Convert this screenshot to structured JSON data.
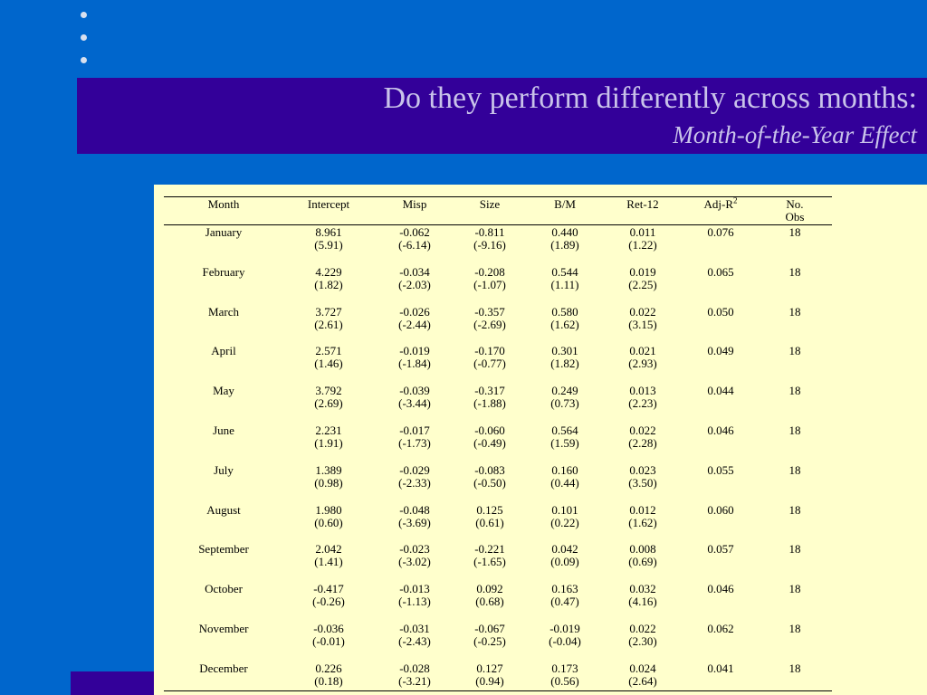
{
  "slide": {
    "title": "Do they perform differently across months:",
    "subtitle": "Month-of-the-Year Effect",
    "bullet_count": 3
  },
  "table": {
    "headers": {
      "month": "Month",
      "intercept": "Intercept",
      "misp": "Misp",
      "size": "Size",
      "bm": "B/M",
      "ret12": "Ret-12",
      "adjr": "Adj-R",
      "adjr_sup": "2",
      "obs_line1": "No.",
      "obs_line2": "Obs"
    },
    "rows": [
      {
        "month": "January",
        "intercept": "8.961",
        "intercept_t": "(5.91)",
        "misp": "-0.062",
        "misp_t": "(-6.14)",
        "size": "-0.811",
        "size_t": "(-9.16)",
        "bm": "0.440",
        "bm_t": "(1.89)",
        "ret12": "0.011",
        "ret12_t": "(1.22)",
        "adjr": "0.076",
        "obs": "18"
      },
      {
        "month": "February",
        "intercept": "4.229",
        "intercept_t": "(1.82)",
        "misp": "-0.034",
        "misp_t": "(-2.03)",
        "size": "-0.208",
        "size_t": "(-1.07)",
        "bm": "0.544",
        "bm_t": "(1.11)",
        "ret12": "0.019",
        "ret12_t": "(2.25)",
        "adjr": "0.065",
        "obs": "18"
      },
      {
        "month": "March",
        "intercept": "3.727",
        "intercept_t": "(2.61)",
        "misp": "-0.026",
        "misp_t": "(-2.44)",
        "size": "-0.357",
        "size_t": "(-2.69)",
        "bm": "0.580",
        "bm_t": "(1.62)",
        "ret12": "0.022",
        "ret12_t": "(3.15)",
        "adjr": "0.050",
        "obs": "18"
      },
      {
        "month": "April",
        "intercept": "2.571",
        "intercept_t": "(1.46)",
        "misp": "-0.019",
        "misp_t": "(-1.84)",
        "size": "-0.170",
        "size_t": "(-0.77)",
        "bm": "0.301",
        "bm_t": "(1.82)",
        "ret12": "0.021",
        "ret12_t": "(2.93)",
        "adjr": "0.049",
        "obs": "18"
      },
      {
        "month": "May",
        "intercept": "3.792",
        "intercept_t": "(2.69)",
        "misp": "-0.039",
        "misp_t": "(-3.44)",
        "size": "-0.317",
        "size_t": "(-1.88)",
        "bm": "0.249",
        "bm_t": "(0.73)",
        "ret12": "0.013",
        "ret12_t": "(2.23)",
        "adjr": "0.044",
        "obs": "18"
      },
      {
        "month": "June",
        "intercept": "2.231",
        "intercept_t": "(1.91)",
        "misp": "-0.017",
        "misp_t": "(-1.73)",
        "size": "-0.060",
        "size_t": "(-0.49)",
        "bm": "0.564",
        "bm_t": "(1.59)",
        "ret12": "0.022",
        "ret12_t": "(2.28)",
        "adjr": "0.046",
        "obs": "18"
      },
      {
        "month": "July",
        "intercept": "1.389",
        "intercept_t": "(0.98)",
        "misp": "-0.029",
        "misp_t": "(-2.33)",
        "size": "-0.083",
        "size_t": "(-0.50)",
        "bm": "0.160",
        "bm_t": "(0.44)",
        "ret12": "0.023",
        "ret12_t": "(3.50)",
        "adjr": "0.055",
        "obs": "18"
      },
      {
        "month": "August",
        "intercept": "1.980",
        "intercept_t": "(0.60)",
        "misp": "-0.048",
        "misp_t": "(-3.69)",
        "size": "0.125",
        "size_t": "(0.61)",
        "bm": "0.101",
        "bm_t": "(0.22)",
        "ret12": "0.012",
        "ret12_t": "(1.62)",
        "adjr": "0.060",
        "obs": "18"
      },
      {
        "month": "September",
        "intercept": "2.042",
        "intercept_t": "(1.41)",
        "misp": "-0.023",
        "misp_t": "(-3.02)",
        "size": "-0.221",
        "size_t": "(-1.65)",
        "bm": "0.042",
        "bm_t": "(0.09)",
        "ret12": "0.008",
        "ret12_t": "(0.69)",
        "adjr": "0.057",
        "obs": "18"
      },
      {
        "month": "October",
        "intercept": "-0.417",
        "intercept_t": "(-0.26)",
        "misp": "-0.013",
        "misp_t": "(-1.13)",
        "size": "0.092",
        "size_t": "(0.68)",
        "bm": "0.163",
        "bm_t": "(0.47)",
        "ret12": "0.032",
        "ret12_t": "(4.16)",
        "adjr": "0.046",
        "obs": "18"
      },
      {
        "month": "November",
        "intercept": "-0.036",
        "intercept_t": "(-0.01)",
        "misp": "-0.031",
        "misp_t": "(-2.43)",
        "size": "-0.067",
        "size_t": "(-0.25)",
        "bm": "-0.019",
        "bm_t": "(-0.04)",
        "ret12": "0.022",
        "ret12_t": "(2.30)",
        "adjr": "0.062",
        "obs": "18"
      },
      {
        "month": "December",
        "intercept": "0.226",
        "intercept_t": "(0.18)",
        "misp": "-0.028",
        "misp_t": "(-3.21)",
        "size": "0.127",
        "size_t": "(0.94)",
        "bm": "0.173",
        "bm_t": "(0.56)",
        "ret12": "0.024",
        "ret12_t": "(2.64)",
        "adjr": "0.041",
        "obs": "18"
      }
    ]
  },
  "colors": {
    "background": "#0066cc",
    "band": "#330099",
    "title_text": "#c9c3ea",
    "table_bg": "#ffffcc"
  }
}
